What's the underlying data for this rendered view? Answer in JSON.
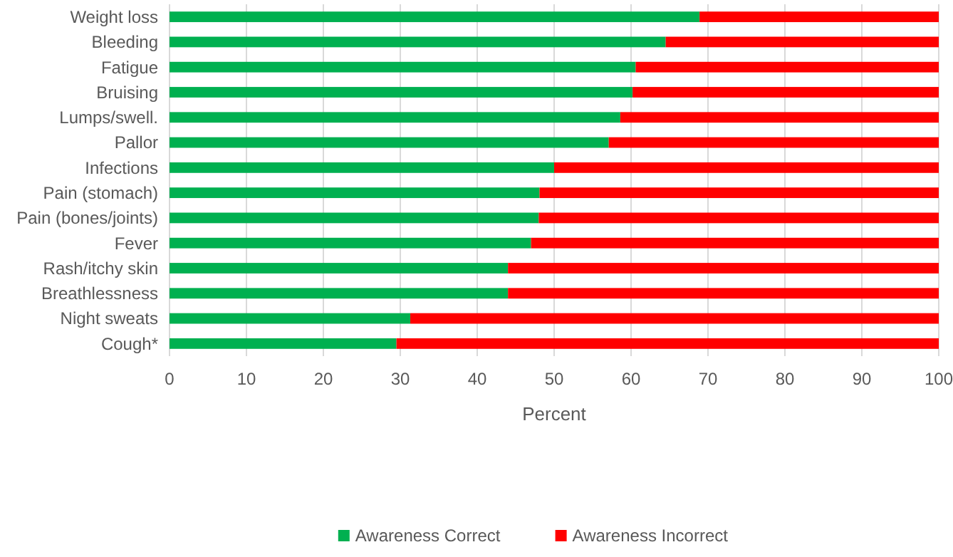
{
  "chart_data": {
    "type": "bar",
    "orientation": "horizontal",
    "stacked": true,
    "xlabel": "Percent",
    "categories": [
      "Weight loss",
      "Bleeding",
      "Fatigue",
      "Bruising",
      "Lumps/swell.",
      "Pallor",
      "Infections",
      "Pain (stomach)",
      "Pain (bones/joints)",
      "Fever",
      "Rash/itchy skin",
      "Breathlessness",
      "Night sweats",
      "Cough*"
    ],
    "series": [
      {
        "name": "Awareness Correct",
        "color": "#00b050",
        "values": [
          68.9,
          64.5,
          60.6,
          60.2,
          58.6,
          57.1,
          50.0,
          48.1,
          48.0,
          47.0,
          44.0,
          44.0,
          31.3,
          29.5
        ]
      },
      {
        "name": "Awareness Incorrect",
        "color": "#ff0000",
        "values": [
          31.1,
          35.5,
          39.4,
          39.8,
          41.4,
          42.9,
          50.0,
          51.9,
          52.0,
          53.0,
          56.0,
          56.0,
          68.7,
          70.5
        ]
      }
    ],
    "xlim": [
      0,
      100
    ],
    "xticks": [
      0,
      10,
      20,
      30,
      40,
      50,
      60,
      70,
      80,
      90,
      100
    ],
    "grid": "x",
    "legend": "bottom"
  }
}
